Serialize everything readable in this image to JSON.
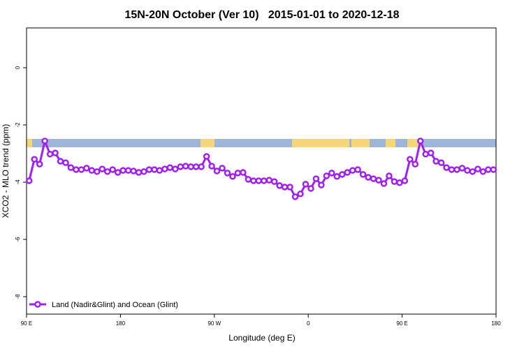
{
  "chart_data": {
    "type": "line",
    "title": "15N-20N October (Ver 10)   2015-01-01 to 2020-12-18",
    "x_label": "Longitude (deg E)",
    "y_label": "XCO2 - MLO trend (ppm)",
    "x": [
      92.5,
      97.5,
      102.5,
      107.5,
      112.5,
      117.5,
      122.5,
      127.5,
      132.5,
      137.5,
      142.5,
      147.5,
      152.5,
      157.5,
      162.5,
      167.5,
      172.5,
      177.5,
      182.5,
      187.5,
      192.5,
      197.5,
      202.5,
      207.5,
      212.5,
      217.5,
      222.5,
      227.5,
      232.5,
      237.5,
      242.5,
      247.5,
      252.5,
      257.5,
      262.5,
      267.5,
      272.5,
      277.5,
      282.5,
      287.5,
      292.5,
      297.5,
      302.5,
      307.5,
      312.5,
      317.5,
      322.5,
      327.5,
      332.5,
      337.5,
      342.5,
      347.5,
      352.5,
      357.5,
      362.5,
      367.5,
      372.5,
      377.5,
      382.5,
      387.5,
      392.5,
      397.5,
      402.5,
      407.5,
      412.5,
      417.5,
      422.5,
      427.5,
      432.5,
      437.5,
      442.5,
      447.5,
      452.5,
      457.5,
      462.5,
      467.5,
      472.5,
      477.5,
      482.5,
      487.5,
      492.5,
      497.5,
      502.5,
      507.5,
      512.5,
      517.5,
      522.5,
      527.5,
      532.5,
      537.5
    ],
    "series": [
      {
        "name": "Land (Nadir&Glint) and Ocean (Glint)",
        "color": "#a020f0",
        "values": [
          -3.95,
          -3.2,
          -3.37,
          -2.56,
          -3.02,
          -2.98,
          -3.27,
          -3.32,
          -3.49,
          -3.56,
          -3.56,
          -3.51,
          -3.59,
          -3.63,
          -3.54,
          -3.63,
          -3.56,
          -3.66,
          -3.59,
          -3.59,
          -3.61,
          -3.66,
          -3.63,
          -3.56,
          -3.56,
          -3.59,
          -3.54,
          -3.49,
          -3.54,
          -3.46,
          -3.44,
          -3.46,
          -3.46,
          -3.46,
          -3.1,
          -3.44,
          -3.61,
          -3.51,
          -3.68,
          -3.8,
          -3.68,
          -3.66,
          -3.9,
          -3.95,
          -3.95,
          -3.95,
          -3.93,
          -3.98,
          -4.12,
          -4.17,
          -4.17,
          -4.51,
          -4.41,
          -4.07,
          -4.22,
          -3.88,
          -4.1,
          -3.78,
          -3.68,
          -3.8,
          -3.73,
          -3.66,
          -3.59,
          -3.56,
          -3.73,
          -3.83,
          -3.88,
          -3.93,
          -4.05,
          -3.78,
          -3.98,
          -4.02,
          -3.95,
          -3.2,
          -3.37,
          -2.56,
          -3.02,
          -2.98,
          -3.27,
          -3.32,
          -3.49,
          -3.56,
          -3.56,
          -3.51,
          -3.59,
          -3.63,
          -3.54,
          -3.63,
          -3.56,
          -3.56
        ]
      }
    ],
    "xlim": [
      90,
      540
    ],
    "xticks": [
      {
        "value": 90,
        "label": "90 E"
      },
      {
        "value": 180,
        "label": "180"
      },
      {
        "value": 270,
        "label": "90 W"
      },
      {
        "value": 360,
        "label": "0"
      },
      {
        "value": 450,
        "label": "90 E"
      },
      {
        "value": 540,
        "label": "180"
      }
    ],
    "ylim": [
      -8.61,
      1.39
    ],
    "yticks": [
      0,
      -2,
      -4,
      -6,
      -8
    ],
    "legend": "bottom-left"
  }
}
